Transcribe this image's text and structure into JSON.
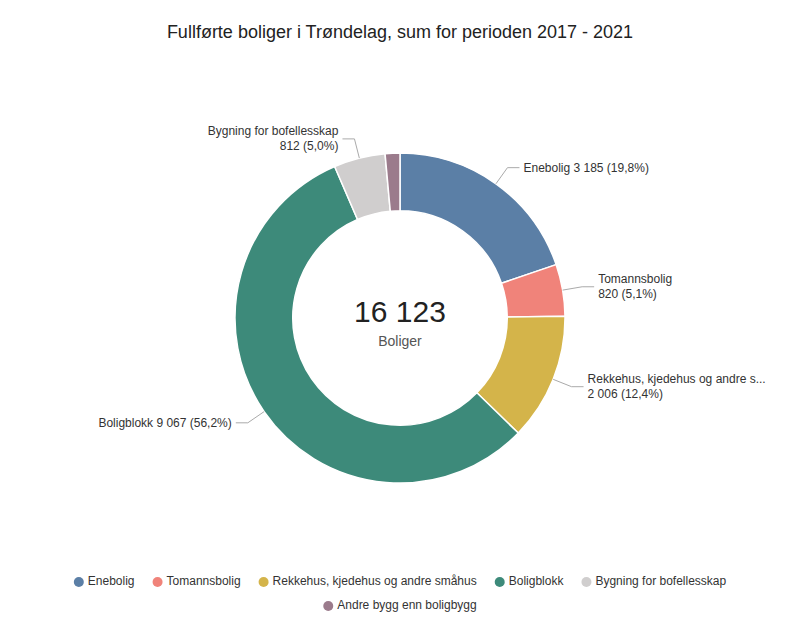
{
  "chart_data": {
    "type": "donut",
    "title": "Fullførte boliger i Trøndelag, sum for perioden 2017 - 2021",
    "categories": [
      "Enebolig",
      "Tomannsbolig",
      "Rekkehus, kjedehus og andre små­hus",
      "Boligblokk",
      "Bygning for bofellesskap",
      "Andre bygg enn boligbygg"
    ],
    "values": [
      3185,
      820,
      2006,
      9067,
      812,
      233
    ],
    "value_labels": [
      "Enebolig 3 185 (19,8%)",
      "Tomannsbolig\n820 (5,1%)",
      "Rekkehus, kjedehus og andre s...\n2 006 (12,4%)",
      "Boligblokk 9 067 (56,2%)",
      "Bygning for bofellesskap\n812 (5,0%)",
      null
    ],
    "colors": [
      "#5b7fa6",
      "#f0837a",
      "#d4b44a",
      "#3d8a7a",
      "#d0cece",
      "#9b7b8c"
    ],
    "annotations": [
      "16 123",
      "Boliger"
    ],
    "legend": "bottom"
  }
}
